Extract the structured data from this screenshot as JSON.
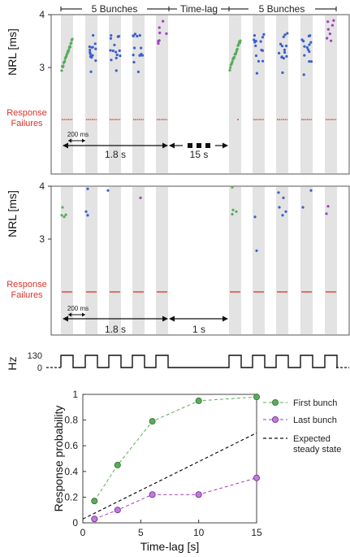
{
  "colors": {
    "green": "#5aab5a",
    "blue": "#3a5fcd",
    "purple": "#a03fbf",
    "red": "#d9342b",
    "band": "#e3e3e3",
    "axis": "#333333"
  },
  "top_annotations": {
    "bunches_left": "5 Bunches",
    "time_lag": "Time-lag",
    "bunches_right": "5 Bunches"
  },
  "chart_data": [
    {
      "type": "scatter",
      "ylabel": "NRL [ms]",
      "yticks": [
        "4",
        "3"
      ],
      "failures_label_line1": "Response",
      "failures_label_line2": "Failures",
      "interval_label": "200 ms",
      "span_label": "1.8 s",
      "lag_label": "15 s",
      "bunch_count": 10
    },
    {
      "type": "scatter",
      "ylabel": "NRL [ms]",
      "yticks": [
        "4",
        "3"
      ],
      "failures_label_line1": "Response",
      "failures_label_line2": "Failures",
      "interval_label": "200 ms",
      "span_label": "1.8 s",
      "lag_label": "1 s",
      "bunch_count": 10
    },
    {
      "type": "line",
      "ylabel": "Hz",
      "yticks": [
        "130",
        "0"
      ]
    },
    {
      "type": "line",
      "xlabel": "Time-lag [s]",
      "ylabel": "Response probability",
      "xlim": [
        0,
        15
      ],
      "ylim": [
        0,
        1
      ],
      "xticks": [
        0,
        5,
        10,
        15
      ],
      "yticks": [
        0,
        0.2,
        0.4,
        0.6,
        0.8,
        1
      ],
      "x": [
        1,
        3,
        6,
        10,
        15
      ],
      "series": [
        {
          "name": "First bunch",
          "values": [
            0.17,
            0.45,
            0.79,
            0.95,
            0.98
          ]
        },
        {
          "name": "Last bunch",
          "values": [
            0.03,
            0.1,
            0.22,
            0.22,
            0.35
          ]
        }
      ],
      "reference_line": {
        "name_line1": "Expected",
        "name_line2": "steady state",
        "x": [
          0,
          15
        ],
        "y": [
          0.03,
          0.7
        ]
      },
      "legend": "top-right",
      "grid": false
    }
  ]
}
